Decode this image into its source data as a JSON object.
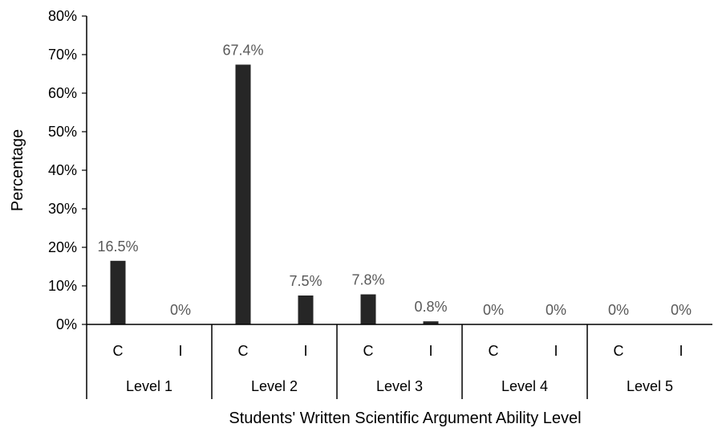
{
  "chart_data": {
    "type": "bar",
    "title": "",
    "xlabel": "Students' Written Scientific Argument Ability Level",
    "ylabel": "Percentage",
    "ylim": [
      0,
      80
    ],
    "yticks": [
      "0%",
      "10%",
      "20%",
      "30%",
      "40%",
      "50%",
      "60%",
      "70%",
      "80%"
    ],
    "groups": [
      "Level 1",
      "Level 2",
      "Level 3",
      "Level 4",
      "Level 5"
    ],
    "subcategories": [
      "C",
      "I"
    ],
    "values": [
      16.5,
      0,
      67.4,
      7.5,
      7.8,
      0.8,
      0,
      0,
      0,
      0
    ],
    "data_labels": [
      "16.5%",
      "0%",
      "67.4%",
      "7.5%",
      "7.8%",
      "0.8%",
      "0%",
      "0%",
      "0%",
      "0%"
    ],
    "grid": false,
    "legend": "none",
    "colors": {
      "bar": "#262626",
      "axis": "#000000",
      "data_label": "#595959"
    }
  }
}
